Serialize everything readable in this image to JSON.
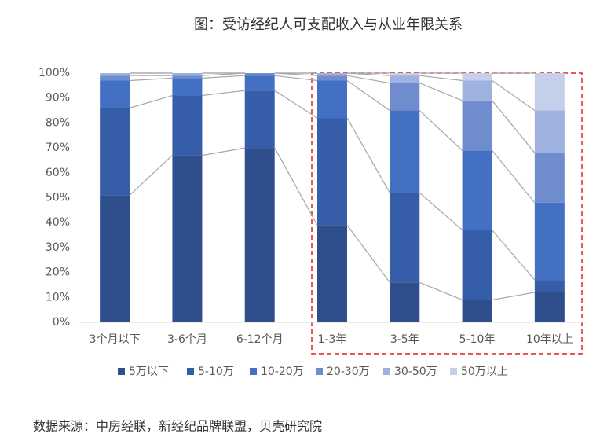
{
  "chart_data": {
    "type": "stacked-bar-100",
    "title": "图：受访经纪人可支配收入与从业年限关系",
    "source": "数据来源：中房经联，新经纪品牌联盟，贝壳研究院",
    "categories": [
      "3个月以下",
      "3-6个月",
      "6-12个月",
      "1-3年",
      "3-5年",
      "5-10年",
      "10年以上"
    ],
    "series": [
      {
        "name": "5万以下",
        "color": "#2f4f8c",
        "values": [
          51,
          67,
          70,
          39,
          16,
          9,
          12
        ]
      },
      {
        "name": "5-10万",
        "color": "#365da8",
        "values": [
          35,
          24,
          23,
          43,
          36,
          28,
          5
        ]
      },
      {
        "name": "10-20万",
        "color": "#4470c4",
        "values": [
          11,
          7,
          6,
          15,
          33,
          32,
          31
        ]
      },
      {
        "name": "20-30万",
        "color": "#6f8dce",
        "values": [
          2,
          1,
          1,
          2,
          11,
          20,
          20
        ]
      },
      {
        "name": "30-50万",
        "color": "#9fb2df",
        "values": [
          1,
          1,
          0,
          1,
          3,
          8,
          17
        ]
      },
      {
        "name": "50万以上",
        "color": "#c4cfea",
        "values": [
          0,
          0,
          0,
          0,
          1,
          3,
          15
        ]
      }
    ],
    "ylim": [
      0,
      100
    ],
    "yticks": [
      {
        "value": 0,
        "label": "0%"
      },
      {
        "value": 10,
        "label": "10%"
      },
      {
        "value": 20,
        "label": "20%"
      },
      {
        "value": 30,
        "label": "30%"
      },
      {
        "value": 40,
        "label": "40%"
      },
      {
        "value": 50,
        "label": "50%"
      },
      {
        "value": 60,
        "label": "60%"
      },
      {
        "value": 70,
        "label": "70%"
      },
      {
        "value": 80,
        "label": "80%"
      },
      {
        "value": 90,
        "label": "90%"
      },
      {
        "value": 100,
        "label": "100%"
      }
    ],
    "grid": false,
    "connector_lines": true,
    "legend": "bottom"
  }
}
